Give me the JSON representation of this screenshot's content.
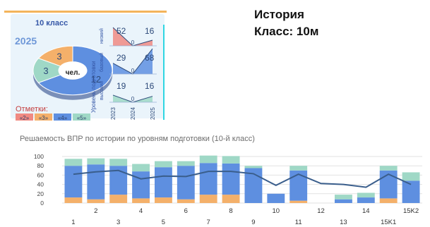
{
  "header": {
    "class_label": "10 класс",
    "subject": "История",
    "class_name": "Класс: 10м",
    "year": "2025",
    "donut_center": "чел."
  },
  "donut": {
    "slices": [
      {
        "label": "12",
        "value": 12,
        "color": "#5e8fe0"
      },
      {
        "label": "3",
        "value": 3,
        "color": "#9fd8c6"
      },
      {
        "label": "3",
        "value": 3,
        "color": "#f4b06a"
      }
    ]
  },
  "legend": {
    "title": "Отметки:",
    "items": [
      {
        "label": "«2»",
        "color": "#f08a82"
      },
      {
        "label": "«3»",
        "color": "#f4b06a"
      },
      {
        "label": "«4»",
        "color": "#5e8fe0"
      },
      {
        "label": "«5»",
        "color": "#9fd8c6"
      }
    ]
  },
  "levels": {
    "axis_label": "Уровень подготовки",
    "rows": [
      {
        "name": "низкий",
        "color": "#f08a82",
        "values": [
          52,
          0,
          16
        ],
        "left_label": "52",
        "right_label": "16"
      },
      {
        "name": "базовый",
        "color": "#5e8fe0",
        "values": [
          29,
          0,
          68
        ],
        "left_label": "29",
        "right_label": "68"
      },
      {
        "name": "высокий",
        "color": "#9fd8c6",
        "values": [
          19,
          0,
          16
        ],
        "left_label": "19",
        "right_label": "16"
      }
    ],
    "years": [
      "2023",
      "2024",
      "2025"
    ],
    "zero_label": "0"
  },
  "chart_data": {
    "type": "bar",
    "title": "Решаемость ВПР по истории по уровням подготовки (10-й класс)",
    "categories": [
      "1",
      "2",
      "3",
      "4",
      "5",
      "6",
      "7",
      "8",
      "9",
      "10",
      "11",
      "12",
      "13",
      "14",
      "15K1",
      "15K2"
    ],
    "ylim": [
      0,
      100
    ],
    "yticks": [
      "0",
      "20",
      "40",
      "60",
      "80",
      "100"
    ],
    "series": [
      {
        "color": "#f4b06a",
        "values": [
          12,
          8,
          18,
          10,
          12,
          8,
          18,
          18,
          0,
          0,
          5,
          0,
          0,
          0,
          10,
          0
        ]
      },
      {
        "color": "#5e8fe0",
        "values": [
          68,
          75,
          62,
          58,
          65,
          72,
          68,
          67,
          75,
          20,
          65,
          0,
          8,
          12,
          60,
          48
        ]
      },
      {
        "color": "#9fd8c6",
        "values": [
          15,
          13,
          15,
          16,
          13,
          10,
          16,
          16,
          5,
          0,
          10,
          0,
          10,
          10,
          10,
          18
        ]
      }
    ],
    "line": {
      "color": "#3a5e8c",
      "values": [
        62,
        67,
        70,
        52,
        58,
        57,
        68,
        68,
        63,
        38,
        62,
        42,
        40,
        34,
        62,
        40
      ]
    }
  }
}
